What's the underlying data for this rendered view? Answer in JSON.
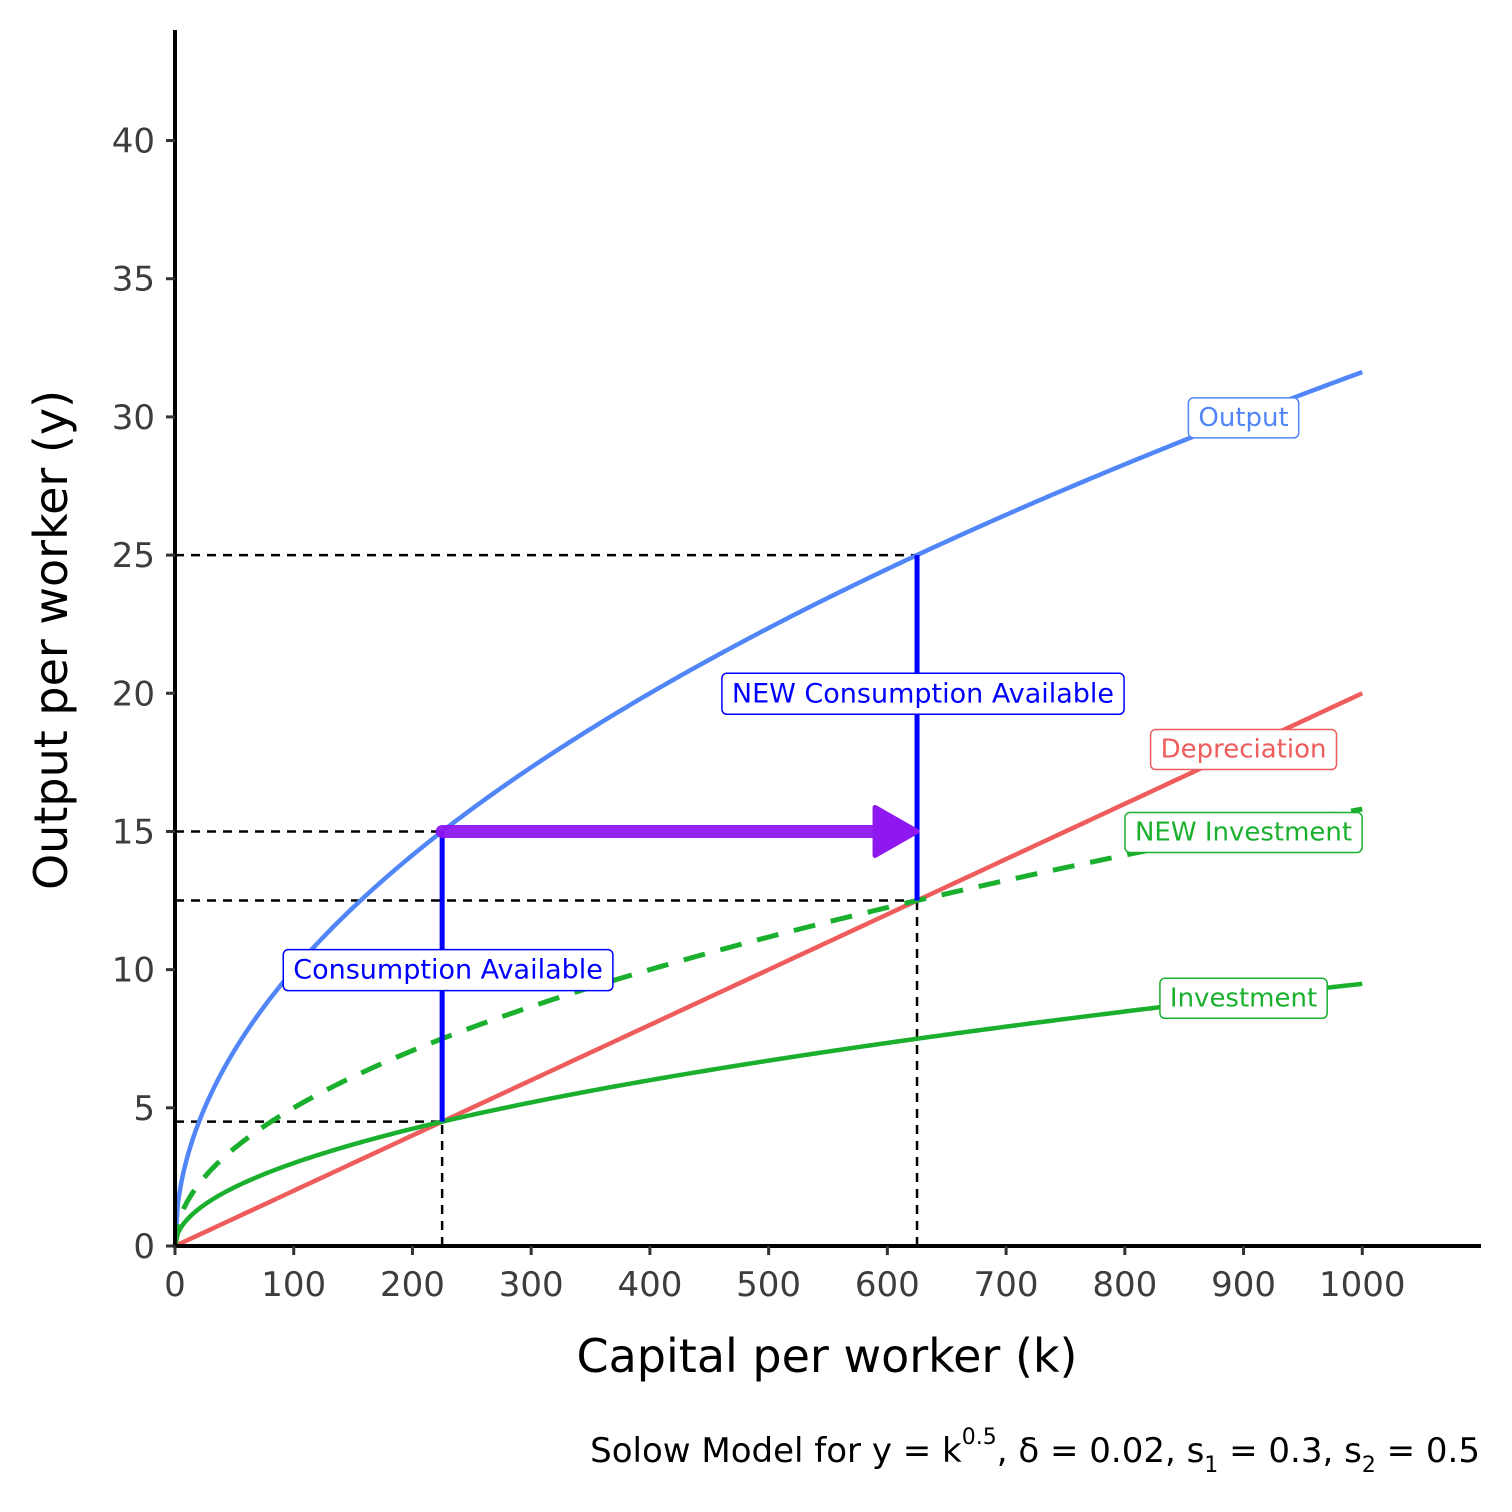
{
  "chart_data": {
    "type": "line",
    "xlabel": "Capital per worker (k)",
    "ylabel": "Output per worker (y)",
    "xlim": [
      0,
      1100
    ],
    "ylim": [
      0,
      44
    ],
    "x_ticks": [
      0,
      100,
      200,
      300,
      400,
      500,
      600,
      700,
      800,
      900,
      1000
    ],
    "y_ticks": [
      0,
      5,
      10,
      15,
      20,
      25,
      30,
      35,
      40
    ],
    "grid": false,
    "legend": "none (direct labels on curves)",
    "series": [
      {
        "name": "Output",
        "color": "#5086f7",
        "style": "solid",
        "function": "k^0.5",
        "x_range": [
          0,
          1000
        ]
      },
      {
        "name": "Depreciation",
        "color": "#ef5c5c",
        "style": "solid",
        "function": "0.02*k",
        "x_range": [
          0,
          1000
        ]
      },
      {
        "name": "Investment",
        "color": "#1ab02e",
        "style": "solid",
        "function": "0.3*k^0.5",
        "x_range": [
          0,
          1000
        ]
      },
      {
        "name": "NEW Investment",
        "color": "#1ab02e",
        "style": "dashed",
        "function": "0.5*k^0.5",
        "x_range": [
          0,
          1000
        ]
      }
    ],
    "series_labels": [
      {
        "text": "Output",
        "x": 900,
        "y": 30,
        "color": "#5086f7"
      },
      {
        "text": "Depreciation",
        "x": 900,
        "y": 18,
        "color": "#ef5c5c"
      },
      {
        "text": "NEW Investment",
        "x": 900,
        "y": 15,
        "color": "#1ab02e"
      },
      {
        "text": "Investment",
        "x": 900,
        "y": 9,
        "color": "#1ab02e"
      }
    ],
    "annotations": [
      {
        "text": "Consumption Available",
        "x": 230,
        "y": 10,
        "color": "#0000ff"
      },
      {
        "text": "NEW Consumption Available",
        "x": 630,
        "y": 20,
        "color": "#0000ff"
      }
    ],
    "reference_lines": {
      "horizontal": [
        {
          "y": 25,
          "x_end": 625
        },
        {
          "y": 15,
          "x_end": 225
        },
        {
          "y": 12.5,
          "x_end": 625
        },
        {
          "y": 4.5,
          "x_end": 225
        }
      ],
      "vertical": [
        {
          "x": 225,
          "y_end": 4.5
        },
        {
          "x": 625,
          "y_end": 12.5
        }
      ]
    },
    "consumption_segments": [
      {
        "x": 225,
        "y_from": 4.5,
        "y_to": 15
      },
      {
        "x": 625,
        "y_from": 12.5,
        "y_to": 25
      }
    ],
    "arrow": {
      "x_from": 225,
      "x_to": 625,
      "y": 15,
      "color": "#8f17f0"
    },
    "caption": "Solow Model for y = k^0.5, δ = 0.02, s1 = 0.3, s2 = 0.5",
    "caption_parts": {
      "main": "Solow Model for y = k",
      "exp": "0.5",
      "delta": ", δ = 0.02, s",
      "sub1": "1",
      "s1val": " = 0.3, s",
      "sub2": "2",
      "s2val": " = 0.5"
    }
  }
}
